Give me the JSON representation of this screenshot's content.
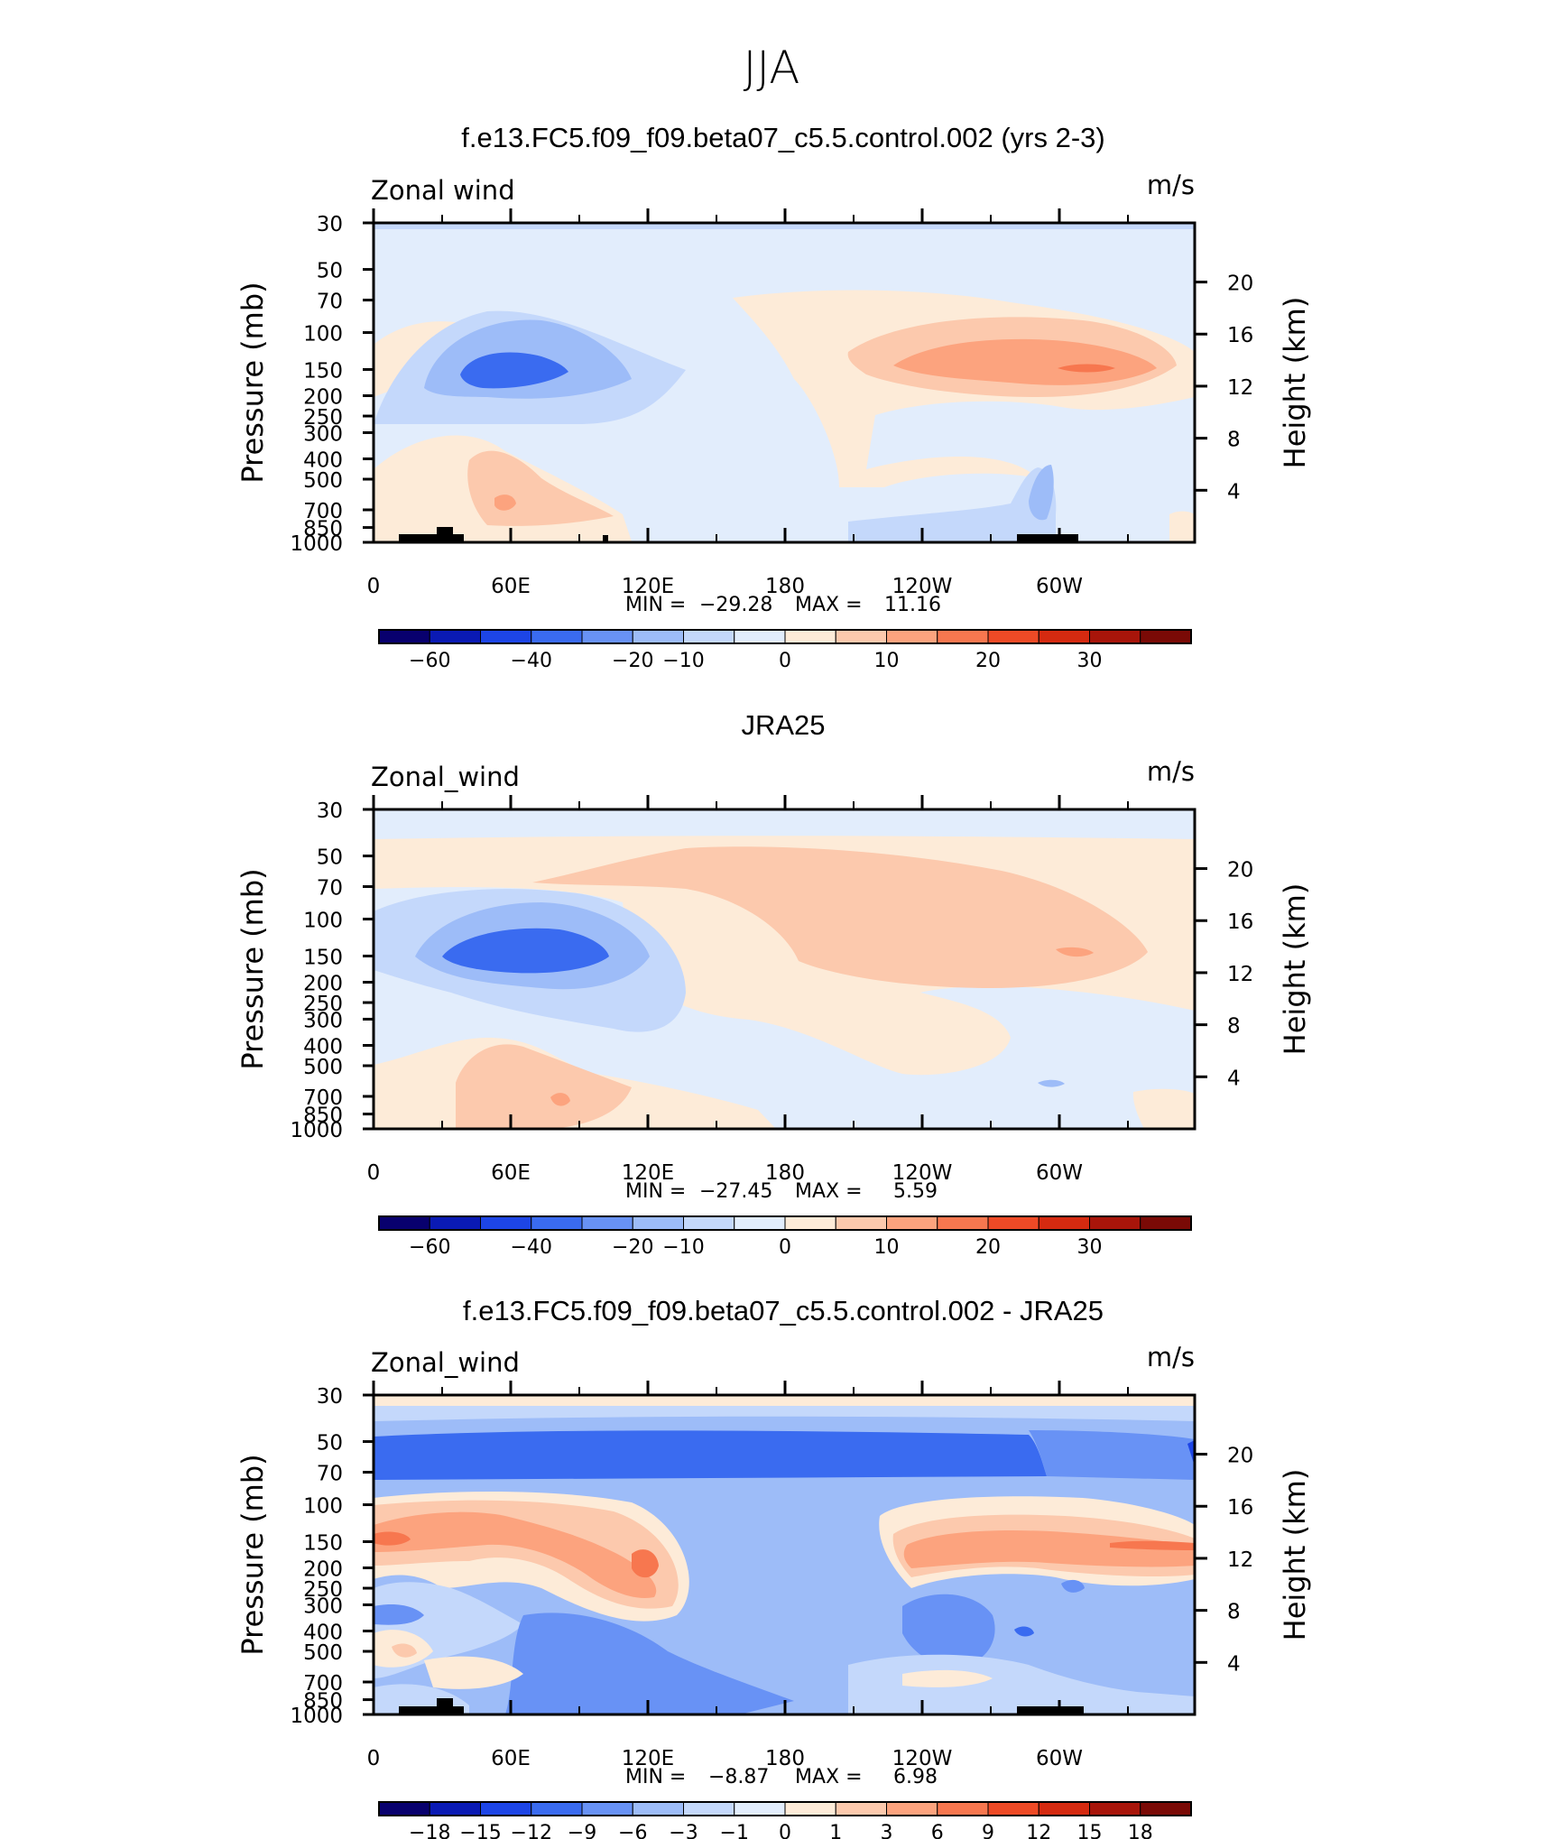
{
  "figure": {
    "title": "JJA"
  },
  "panels": [
    {
      "title": "f.e13.FC5.f09_f09.beta07_c5.5.control.002 (yrs 2-3)",
      "left_label": "Zonal wind",
      "units": "m/s",
      "stats": {
        "min_label": "MIN  =",
        "min": "−29.28",
        "max_label": "MAX  =",
        "max": "11.16"
      }
    },
    {
      "title": "JRA25",
      "left_label": "Zonal_wind",
      "units": "m/s",
      "stats": {
        "min_label": "MIN  =",
        "min": "−27.45",
        "max_label": "MAX  =",
        "max": "5.59"
      }
    },
    {
      "title": "f.e13.FC5.f09_f09.beta07_c5.5.control.002 - JRA25",
      "left_label": "Zonal_wind",
      "units": "m/s",
      "stats": {
        "min_label": "MIN  =",
        "min": "−8.87",
        "max_label": "MAX  =",
        "max": "6.98"
      }
    }
  ],
  "chart_data": [
    {
      "type": "heatmap",
      "title": "f.e13.FC5.f09_f09.beta07_c5.5.control.002 (yrs 2-3)",
      "xlabel": "",
      "ylabel": "Pressure (mb)",
      "ylabel_right": "Height (km)",
      "x_ticks": [
        "0",
        "60E",
        "120E",
        "180",
        "120W",
        "60W"
      ],
      "y_ticks": [
        "30",
        "50",
        "70",
        "100",
        "150",
        "200",
        "250",
        "300",
        "400",
        "500",
        "700",
        "850",
        "1000"
      ],
      "y_ticks_right": [
        "20",
        "16",
        "12",
        "8",
        "4"
      ],
      "colorbar_ticks": [
        "−60",
        "−40",
        "−20",
        "−10",
        "0",
        "10",
        "20",
        "30"
      ],
      "colorbar_colors": [
        "#08006e",
        "#0a1ab4",
        "#1d45e6",
        "#3a6bf0",
        "#6892f5",
        "#9dbcf8",
        "#c4d8fb",
        "#e2edfc",
        "#fdebd8",
        "#fcc9ad",
        "#fca37e",
        "#f7774f",
        "#ee4a26",
        "#d52a10",
        "#a8150a",
        "#7a0a06"
      ],
      "min": -29.28,
      "max": 11.16
    },
    {
      "type": "heatmap",
      "title": "JRA25",
      "xlabel": "",
      "ylabel": "Pressure (mb)",
      "ylabel_right": "Height (km)",
      "x_ticks": [
        "0",
        "60E",
        "120E",
        "180",
        "120W",
        "60W"
      ],
      "y_ticks": [
        "30",
        "50",
        "70",
        "100",
        "150",
        "200",
        "250",
        "300",
        "400",
        "500",
        "700",
        "850",
        "1000"
      ],
      "y_ticks_right": [
        "20",
        "16",
        "12",
        "8",
        "4"
      ],
      "colorbar_ticks": [
        "−60",
        "−40",
        "−20",
        "−10",
        "0",
        "10",
        "20",
        "30"
      ],
      "colorbar_colors": [
        "#08006e",
        "#0a1ab4",
        "#1d45e6",
        "#3a6bf0",
        "#6892f5",
        "#9dbcf8",
        "#c4d8fb",
        "#e2edfc",
        "#fdebd8",
        "#fcc9ad",
        "#fca37e",
        "#f7774f",
        "#ee4a26",
        "#d52a10",
        "#a8150a",
        "#7a0a06"
      ],
      "min": -27.45,
      "max": 5.59
    },
    {
      "type": "heatmap",
      "title": "f.e13.FC5.f09_f09.beta07_c5.5.control.002 - JRA25",
      "xlabel": "",
      "ylabel": "Pressure (mb)",
      "ylabel_right": "Height (km)",
      "x_ticks": [
        "0",
        "60E",
        "120E",
        "180",
        "120W",
        "60W"
      ],
      "y_ticks": [
        "30",
        "50",
        "70",
        "100",
        "150",
        "200",
        "250",
        "300",
        "400",
        "500",
        "700",
        "850",
        "1000"
      ],
      "y_ticks_right": [
        "20",
        "16",
        "12",
        "8",
        "4"
      ],
      "colorbar_ticks": [
        "−18",
        "−15",
        "−12",
        "−9",
        "−6",
        "−3",
        "−1",
        "0",
        "1",
        "3",
        "6",
        "9",
        "12",
        "15",
        "18"
      ],
      "colorbar_colors": [
        "#08006e",
        "#0a1ab4",
        "#1d45e6",
        "#3a6bf0",
        "#6892f5",
        "#9dbcf8",
        "#c4d8fb",
        "#e2edfc",
        "#fdebd8",
        "#fcc9ad",
        "#fca37e",
        "#f7774f",
        "#ee4a26",
        "#d52a10",
        "#a8150a",
        "#7a0a06"
      ],
      "min": -8.87,
      "max": 6.98
    }
  ]
}
